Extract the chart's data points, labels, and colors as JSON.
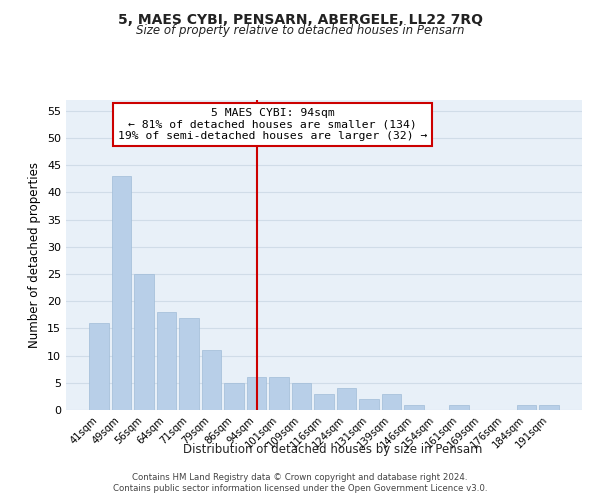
{
  "title": "5, MAES CYBI, PENSARN, ABERGELE, LL22 7RQ",
  "subtitle": "Size of property relative to detached houses in Pensarn",
  "xlabel": "Distribution of detached houses by size in Pensarn",
  "ylabel": "Number of detached properties",
  "bar_labels": [
    "41sqm",
    "49sqm",
    "56sqm",
    "64sqm",
    "71sqm",
    "79sqm",
    "86sqm",
    "94sqm",
    "101sqm",
    "109sqm",
    "116sqm",
    "124sqm",
    "131sqm",
    "139sqm",
    "146sqm",
    "154sqm",
    "161sqm",
    "169sqm",
    "176sqm",
    "184sqm",
    "191sqm"
  ],
  "bar_values": [
    16,
    43,
    25,
    18,
    17,
    11,
    5,
    6,
    6,
    5,
    3,
    4,
    2,
    3,
    1,
    0,
    1,
    0,
    0,
    1,
    1
  ],
  "bar_color": "#b8cfe8",
  "highlight_index": 7,
  "highlight_line_color": "#cc0000",
  "ylim": [
    0,
    57
  ],
  "yticks": [
    0,
    5,
    10,
    15,
    20,
    25,
    30,
    35,
    40,
    45,
    50,
    55
  ],
  "annotation_title": "5 MAES CYBI: 94sqm",
  "annotation_line1": "← 81% of detached houses are smaller (134)",
  "annotation_line2": "19% of semi-detached houses are larger (32) →",
  "annotation_box_color": "#ffffff",
  "annotation_box_edge": "#cc0000",
  "footer_line1": "Contains HM Land Registry data © Crown copyright and database right 2024.",
  "footer_line2": "Contains public sector information licensed under the Open Government Licence v3.0.",
  "grid_color": "#d0dce8",
  "background_color": "#e8f0f8"
}
